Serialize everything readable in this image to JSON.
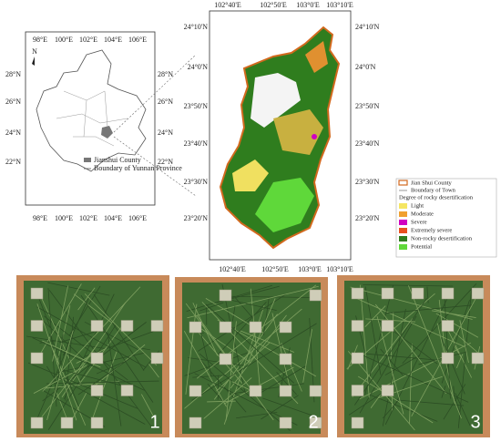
{
  "overview_map": {
    "top_longitudes": [
      "98°E",
      "100°E",
      "102°E",
      "104°E",
      "106°E"
    ],
    "bottom_longitudes": [
      "98°E",
      "100°E",
      "102°E",
      "104°E",
      "106°E"
    ],
    "left_latitudes": [
      "28°N",
      "26°N",
      "24°N",
      "22°N"
    ],
    "right_latitudes": [
      "28°N",
      "26°N",
      "24°N",
      "22°N"
    ],
    "north_label": "N",
    "legend": [
      "Jianshui County",
      "Boundary of Yunnan Province"
    ]
  },
  "county_map": {
    "top_longitudes": [
      "102°40'E",
      "102°50'E",
      "103°0'E",
      "103°10'E"
    ],
    "bottom_longitudes": [
      "102°40'E",
      "102°50'E",
      "103°0'E",
      "103°10'E"
    ],
    "left_latitudes": [
      "24°10'N",
      "24°0'N",
      "23°50'N",
      "23°40'N",
      "23°30'N",
      "23°20'N"
    ],
    "right_latitudes": [
      "24°10'N",
      "24°0'N",
      "23°50'N",
      "23°40'N",
      "23°30'N",
      "23°20'N"
    ],
    "legend": {
      "county": {
        "label": "Jian Shui County",
        "color": "#d2691e"
      },
      "town": {
        "label": "Boundary of Town",
        "color": "#999999"
      },
      "heading": "Degree of rocky desertification",
      "classes": [
        {
          "label": "Light",
          "color": "#f5e663"
        },
        {
          "label": "Moderate",
          "color": "#f0a030"
        },
        {
          "label": "Severe",
          "color": "#d000c0"
        },
        {
          "label": "Extremely severe",
          "color": "#e85020"
        },
        {
          "label": "Non-rocky desertification",
          "color": "#2f7d1e"
        },
        {
          "label": "Potential",
          "color": "#5fd83a"
        }
      ]
    }
  },
  "photos": [
    "1",
    "2",
    "3"
  ]
}
